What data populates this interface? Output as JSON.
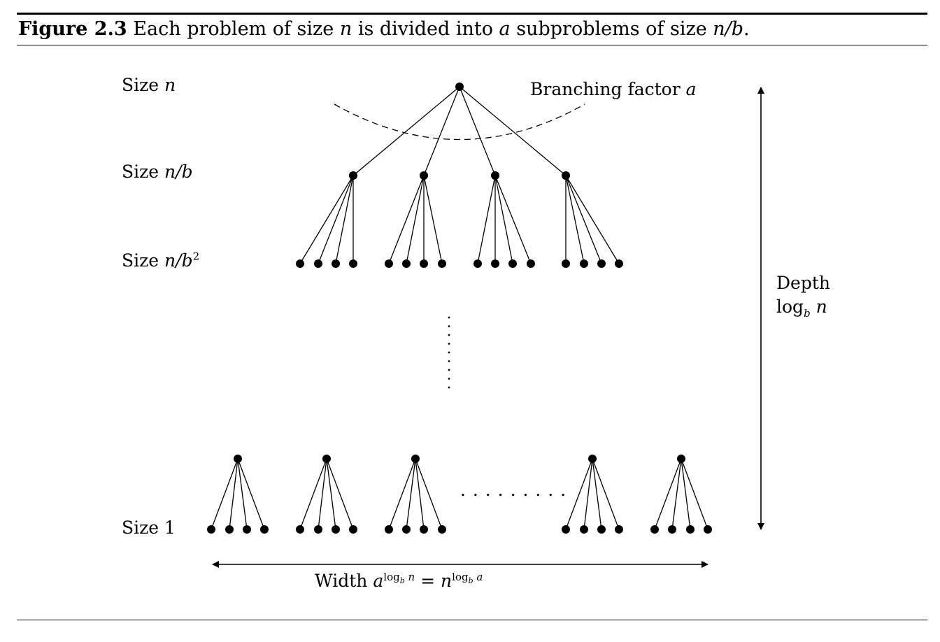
{
  "caption": {
    "label": "Figure 2.3",
    "text_before_n": " Each problem of size ",
    "var_n": "n",
    "text_divided": " is divided into ",
    "var_a": "a",
    "text_subproblems": " subproblems of size ",
    "var_nb": "n/b",
    "text_end": "."
  },
  "levels": {
    "size_n": {
      "word": "Size ",
      "expr": "n"
    },
    "size_nb": {
      "word": "Size ",
      "expr": "n/b"
    },
    "size_nb2": {
      "word": "Size ",
      "expr": "n/b",
      "exponent": "2"
    },
    "size_1": {
      "word": "Size ",
      "expr": "1"
    }
  },
  "branching": {
    "word": "Branching factor ",
    "var": "a"
  },
  "depth": {
    "word": "Depth",
    "log": "log",
    "base": "b",
    "arg": " n"
  },
  "width": {
    "word": "Width ",
    "lhs_base": "a",
    "lhs_exp_log": "log",
    "lhs_exp_base": "b",
    "lhs_exp_arg": " n",
    "equals": " = ",
    "rhs_base": "n",
    "rhs_exp_log": "log",
    "rhs_exp_base": "b",
    "rhs_exp_arg": " a"
  },
  "ellipsis": {
    "horizontal": ". . . . . . . . ."
  }
}
